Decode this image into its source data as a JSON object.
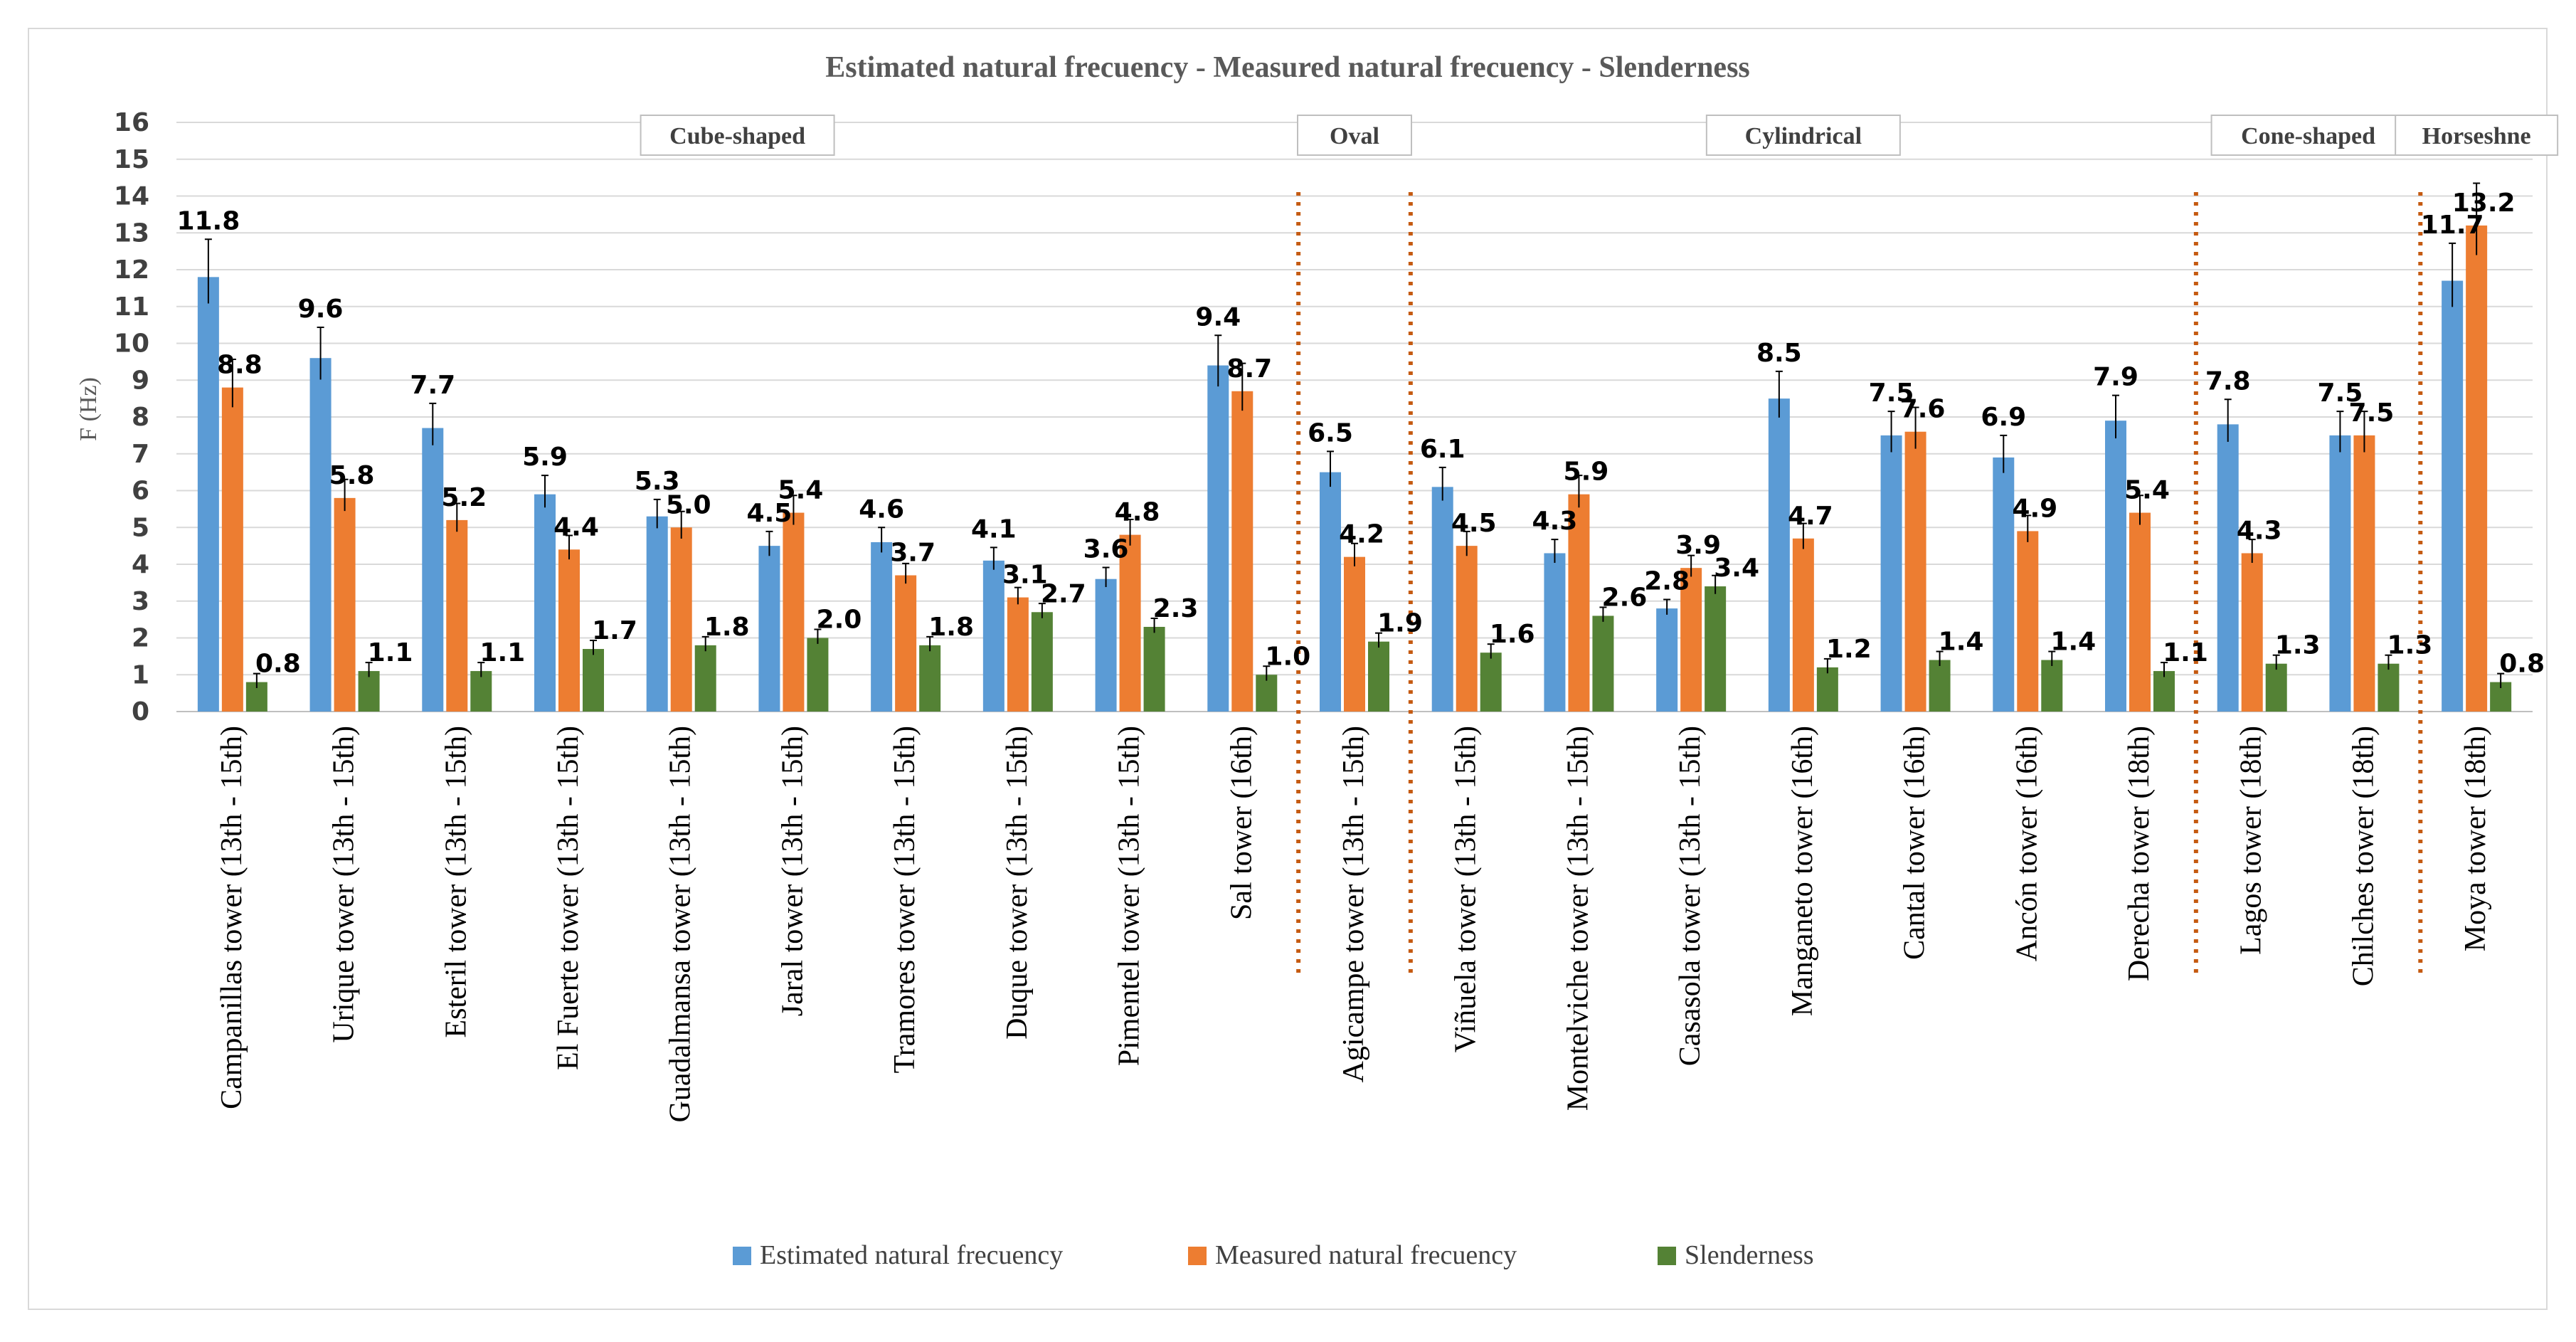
{
  "chart_data": {
    "type": "bar",
    "title": "Estimated natural frecuency - Measured natural frecuency - Slenderness",
    "ylabel": "F (Hz)",
    "xlabel": "",
    "ylim": [
      0,
      16
    ],
    "yticks": [
      "0",
      "1",
      "2",
      "3",
      "4",
      "5",
      "6",
      "7",
      "8",
      "9",
      "10",
      "11",
      "12",
      "13",
      "14",
      "15",
      "16"
    ],
    "grid": true,
    "legend_position": "bottom",
    "categories": [
      "Campanillas tower (13th - 15th)",
      "Urique tower (13th - 15th)",
      "Esteril tower (13th - 15th)",
      "El Fuerte tower (13th - 15th)",
      "Guadalmansa tower (13th - 15th)",
      "Jaral tower (13th - 15th)",
      "Tramores tower (13th - 15th)",
      "Duque tower (13th - 15th)",
      "Pimentel tower (13th - 15th)",
      "Sal tower (16th)",
      "Agicampe tower (13th - 15th)",
      "Viñuela tower (13th - 15th)",
      "Montelviche tower (13th - 15th)",
      "Casasola tower (13th - 15th)",
      "Manganeto tower (16th)",
      "Cantal tower (16th)",
      "Ancón tower (16th)",
      "Derecha tower (18th)",
      "Lagos tower (18th)",
      "Chilches tower (18th)",
      "Moya tower (18th)"
    ],
    "series": [
      {
        "name": "Estimated natural frecuency",
        "color": "#5b9bd5",
        "values": [
          11.8,
          9.6,
          7.7,
          5.9,
          5.3,
          4.5,
          4.6,
          4.1,
          3.6,
          9.4,
          6.5,
          6.1,
          4.3,
          2.8,
          8.5,
          7.5,
          6.9,
          7.9,
          7.8,
          7.5,
          11.7
        ],
        "labels": [
          "11.8",
          "9.6",
          "7.7",
          "5.9",
          "5.3",
          "4.5",
          "4.6",
          "4.1",
          "3.6",
          "9.4",
          "6.5",
          "6.1",
          "4.3",
          "2.8",
          "8.5",
          "7.5",
          "6.9",
          "7.9",
          "7.8",
          "7.5",
          "11.7"
        ]
      },
      {
        "name": "Measured natural frecuency",
        "color": "#ed7d31",
        "values": [
          8.8,
          5.8,
          5.2,
          4.4,
          5.0,
          5.4,
          3.7,
          3.1,
          4.8,
          8.7,
          4.2,
          4.5,
          5.9,
          3.9,
          4.7,
          7.6,
          4.9,
          5.4,
          4.3,
          7.5,
          13.2
        ],
        "labels": [
          "8.8",
          "5.8",
          "5.2",
          "4.4",
          "5.0",
          "5.4",
          "3.7",
          "3.1",
          "4.8",
          "8.7",
          "4.2",
          "4.5",
          "5.9",
          "3.9",
          "4.7",
          "7.6",
          "4.9",
          "5.4",
          "4.3",
          "7.5",
          "13.2"
        ]
      },
      {
        "name": "Slenderness",
        "color": "#548235",
        "values": [
          0.8,
          1.1,
          1.1,
          1.7,
          1.8,
          2.0,
          1.8,
          2.7,
          2.3,
          1.0,
          1.9,
          1.6,
          2.6,
          3.4,
          1.2,
          1.4,
          1.4,
          1.1,
          1.3,
          1.3,
          0.8
        ],
        "labels": [
          "0.8",
          "1.1",
          "1.1",
          "1.7",
          "1.8",
          "2.0",
          "1.8",
          "2.7",
          "2.3",
          "1.0",
          "1.9",
          "1.6",
          "2.6",
          "3.4",
          "1.2",
          "1.4",
          "1.4",
          "1.1",
          "1.3",
          "1.3",
          "0.8"
        ]
      }
    ],
    "groups": [
      {
        "label": "Cube-shaped",
        "start": 0,
        "end": 9
      },
      {
        "label": "Oval",
        "start": 10,
        "end": 10
      },
      {
        "label": "Cylindrical",
        "start": 11,
        "end": 17
      },
      {
        "label": "Cone-shaped",
        "start": 18,
        "end": 19
      },
      {
        "label": "Horseshne",
        "start": 20,
        "end": 20
      }
    ],
    "divider_color": "#c55a11"
  }
}
